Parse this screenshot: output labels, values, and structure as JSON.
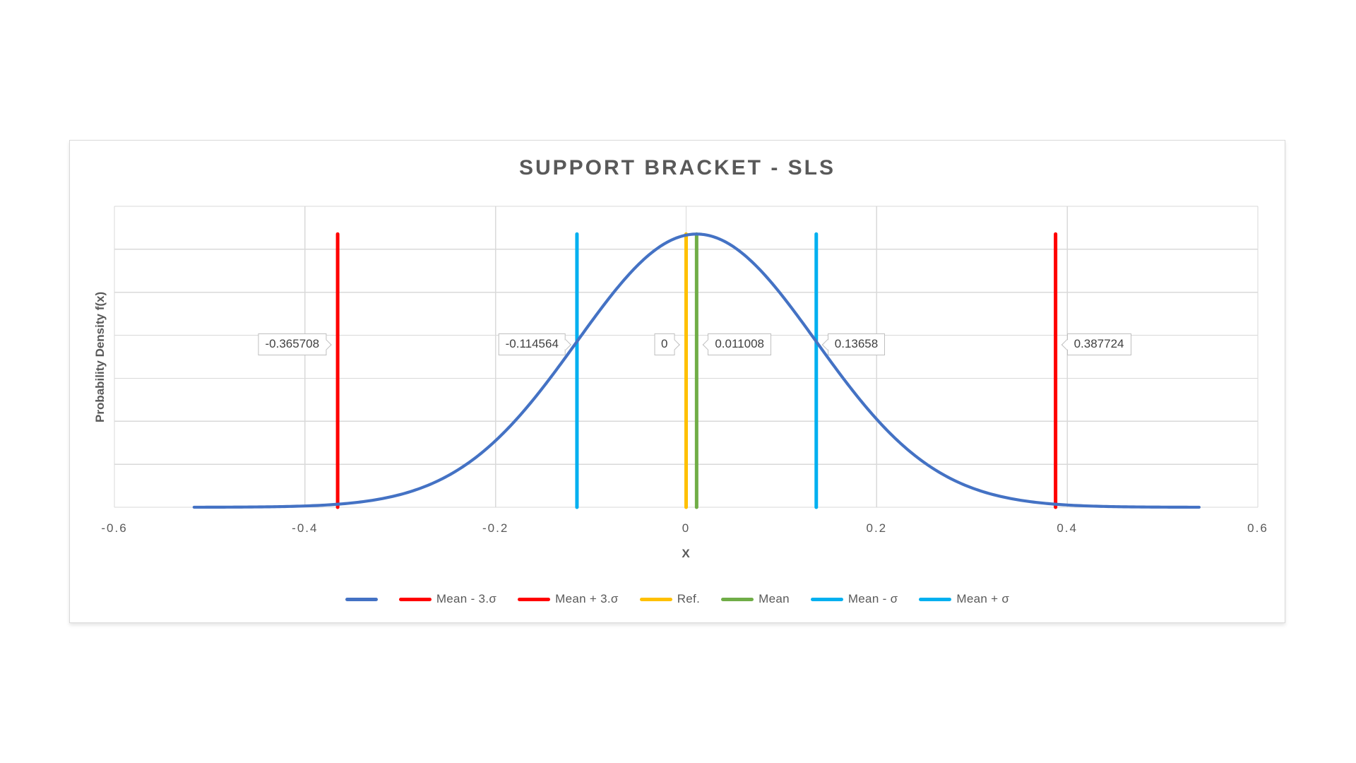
{
  "chart_data": {
    "type": "line",
    "title": "SUPPORT BRACKET - SLS",
    "xlabel": "X",
    "ylabel": "Probability Density f(x)",
    "xlim": [
      -0.6,
      0.6
    ],
    "ylim": [
      0,
      3.5
    ],
    "x_ticks": [
      -0.6,
      -0.4,
      -0.2,
      0,
      0.2,
      0.4,
      0.6
    ],
    "x_tick_labels": [
      "-0.6",
      "-0.4",
      "-0.2",
      "0",
      "0.2",
      "0.4",
      "0.6"
    ],
    "y_tick_labels": [],
    "y_gridline_step": 0.5,
    "grid": true,
    "gridline_color": "#D9D9D9",
    "legend_position": "bottom",
    "curve": {
      "key": "pdf-curve",
      "name": "",
      "distribution": "normal_pdf",
      "mean": 0.011008,
      "sigma": 0.125572,
      "x_range_sigmas": 4.2,
      "color": "#4472C4",
      "stroke_width": 4.2
    },
    "vlines": [
      {
        "key": "mean-minus-3sigma",
        "name": "Mean - 3.σ",
        "x": -0.365708,
        "label": "-0.365708",
        "color": "#FF0000",
        "label_side": "left"
      },
      {
        "key": "mean-plus-3sigma",
        "name": "Mean + 3.σ",
        "x": 0.387724,
        "label": "0.387724",
        "color": "#FF0000",
        "label_side": "right"
      },
      {
        "key": "ref",
        "name": "Ref.",
        "x": 0,
        "label": "0",
        "color": "#FFC000",
        "label_side": "left"
      },
      {
        "key": "mean",
        "name": "Mean",
        "x": 0.011008,
        "label": "0.011008",
        "color": "#70AD47",
        "label_side": "right"
      },
      {
        "key": "mean-minus-sigma",
        "name": "Mean - σ",
        "x": -0.114564,
        "label": "-0.114564",
        "color": "#00B0F0",
        "label_side": "left"
      },
      {
        "key": "mean-plus-sigma",
        "name": "Mean + σ",
        "x": 0.13658,
        "label": "0.13658",
        "color": "#00B0F0",
        "label_side": "right"
      }
    ],
    "vline_stroke_width": 5,
    "legend": [
      {
        "key": "curve",
        "label": "",
        "color": "#4472C4"
      },
      {
        "key": "mean-minus-3sigma",
        "label": "Mean - 3.σ",
        "color": "#FF0000"
      },
      {
        "key": "mean-plus-3sigma",
        "label": "Mean + 3.σ",
        "color": "#FF0000"
      },
      {
        "key": "ref",
        "label": "Ref.",
        "color": "#FFC000"
      },
      {
        "key": "mean",
        "label": "Mean",
        "color": "#70AD47"
      },
      {
        "key": "mean-minus-sigma",
        "label": "Mean - σ",
        "color": "#00B0F0"
      },
      {
        "key": "mean-plus-sigma",
        "label": "Mean + σ",
        "color": "#00B0F0"
      }
    ],
    "text_colors": {
      "title": "#595959",
      "axis": "#595959",
      "data_label": "#404040"
    },
    "chart_border_color": "#D9D9D9"
  }
}
